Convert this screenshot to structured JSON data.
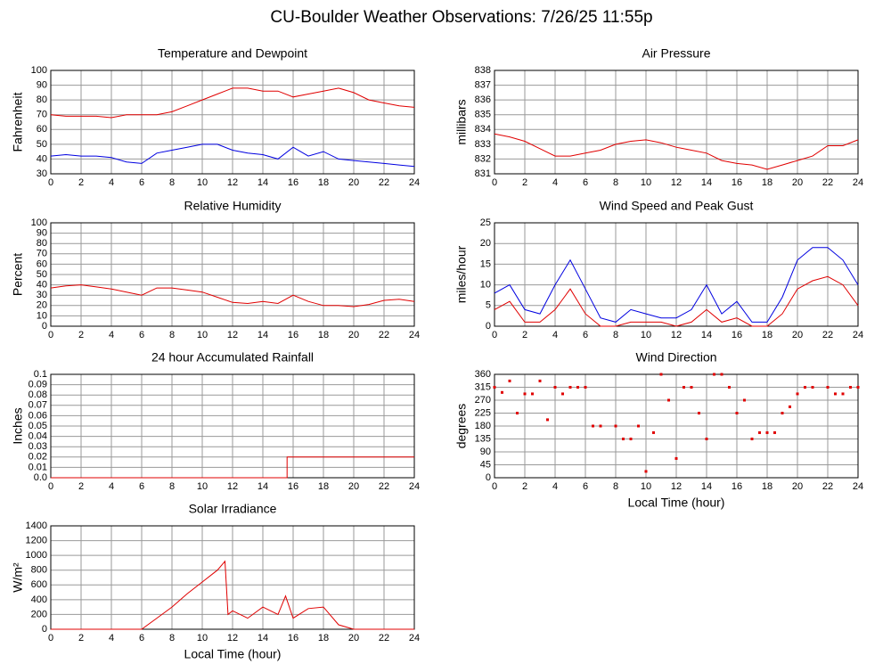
{
  "title": "CU-Boulder Weather Observations: 7/26/25 11:55p",
  "chart_data": [
    {
      "type": "line",
      "title": "Temperature and Dewpoint",
      "y_label": "Fahrenheit",
      "x": [
        0,
        1,
        2,
        3,
        4,
        5,
        6,
        7,
        8,
        9,
        10,
        11,
        12,
        13,
        14,
        15,
        16,
        17,
        18,
        19,
        20,
        21,
        22,
        23,
        24
      ],
      "series": [
        {
          "color": "#e00000",
          "values": [
            70,
            69,
            69,
            69,
            68,
            70,
            70,
            70,
            72,
            76,
            80,
            84,
            88,
            88,
            86,
            86,
            82,
            84,
            86,
            88,
            85,
            80,
            78,
            76,
            75
          ]
        },
        {
          "color": "#0000e0",
          "values": [
            42,
            43,
            42,
            42,
            41,
            38,
            37,
            44,
            46,
            48,
            50,
            50,
            46,
            44,
            43,
            40,
            48,
            42,
            45,
            40,
            39,
            38,
            37,
            36,
            35
          ]
        }
      ],
      "xlim": [
        0,
        24
      ],
      "xticks": [
        0,
        2,
        4,
        6,
        8,
        10,
        12,
        14,
        16,
        18,
        20,
        22,
        24
      ],
      "ylim": [
        30,
        100
      ],
      "yticks": [
        30,
        40,
        50,
        60,
        70,
        80,
        90,
        100
      ],
      "grid": true
    },
    {
      "type": "line",
      "title": "Air Pressure",
      "y_label": "millibars",
      "x": [
        0,
        1,
        2,
        3,
        4,
        5,
        6,
        7,
        8,
        9,
        10,
        11,
        12,
        13,
        14,
        15,
        16,
        17,
        18,
        19,
        20,
        21,
        22,
        23,
        24
      ],
      "series": [
        {
          "color": "#e00000",
          "values": [
            833.7,
            833.5,
            833.2,
            832.7,
            832.2,
            832.2,
            832.4,
            832.6,
            833.0,
            833.2,
            833.3,
            833.1,
            832.8,
            832.6,
            832.4,
            831.9,
            831.7,
            831.6,
            831.3,
            831.6,
            831.9,
            832.2,
            832.9,
            832.9,
            833.3
          ]
        }
      ],
      "xlim": [
        0,
        24
      ],
      "xticks": [
        0,
        2,
        4,
        6,
        8,
        10,
        12,
        14,
        16,
        18,
        20,
        22,
        24
      ],
      "ylim": [
        831,
        838
      ],
      "yticks": [
        831,
        832,
        833,
        834,
        835,
        836,
        837,
        838
      ],
      "grid": true
    },
    {
      "type": "line",
      "title": "Relative Humidity",
      "y_label": "Percent",
      "x": [
        0,
        1,
        2,
        3,
        4,
        5,
        6,
        7,
        8,
        9,
        10,
        11,
        12,
        13,
        14,
        15,
        16,
        17,
        18,
        19,
        20,
        21,
        22,
        23,
        24
      ],
      "series": [
        {
          "color": "#e00000",
          "values": [
            37,
            39,
            40,
            38,
            36,
            33,
            30,
            37,
            37,
            35,
            33,
            28,
            23,
            22,
            24,
            22,
            30,
            24,
            20,
            20,
            19,
            21,
            25,
            26,
            24
          ]
        }
      ],
      "xlim": [
        0,
        24
      ],
      "xticks": [
        0,
        2,
        4,
        6,
        8,
        10,
        12,
        14,
        16,
        18,
        20,
        22,
        24
      ],
      "ylim": [
        0,
        100
      ],
      "yticks": [
        0,
        10,
        20,
        30,
        40,
        50,
        60,
        70,
        80,
        90,
        100
      ],
      "grid": true
    },
    {
      "type": "line",
      "title": "Wind Speed and Peak Gust",
      "y_label": "miles/hour",
      "x": [
        0,
        1,
        2,
        3,
        4,
        5,
        6,
        7,
        8,
        9,
        10,
        11,
        12,
        13,
        14,
        15,
        16,
        17,
        18,
        19,
        20,
        21,
        22,
        23,
        24
      ],
      "series": [
        {
          "color": "#0000e0",
          "values": [
            8,
            10,
            4,
            3,
            10,
            16,
            9,
            2,
            1,
            4,
            3,
            2,
            2,
            4,
            10,
            3,
            6,
            1,
            1,
            7,
            16,
            19,
            19,
            16,
            10
          ]
        },
        {
          "color": "#e00000",
          "values": [
            4,
            6,
            1,
            1,
            4,
            9,
            3,
            0,
            0,
            1,
            1,
            1,
            0,
            1,
            4,
            1,
            2,
            0,
            0,
            3,
            9,
            11,
            12,
            10,
            5
          ]
        }
      ],
      "xlim": [
        0,
        24
      ],
      "xticks": [
        0,
        2,
        4,
        6,
        8,
        10,
        12,
        14,
        16,
        18,
        20,
        22,
        24
      ],
      "ylim": [
        0,
        25
      ],
      "yticks": [
        0,
        5,
        10,
        15,
        20,
        25
      ],
      "grid": true
    },
    {
      "type": "line",
      "title": "24 hour Accumulated Rainfall",
      "y_label": "Inches",
      "x": [
        0,
        15.6,
        15.6,
        24
      ],
      "series": [
        {
          "color": "#e00000",
          "values": [
            0,
            0,
            0.02,
            0.02
          ]
        }
      ],
      "xlim": [
        0,
        24
      ],
      "xticks": [
        0,
        2,
        4,
        6,
        8,
        10,
        12,
        14,
        16,
        18,
        20,
        22,
        24
      ],
      "ylim": [
        0,
        0.1
      ],
      "yticks": [
        {
          "value": 0,
          "label": "0.0"
        },
        0.01,
        0.02,
        0.03,
        0.04,
        0.05,
        0.06,
        0.07,
        0.08,
        0.09,
        0.1
      ],
      "grid": true
    },
    {
      "type": "scatter",
      "title": "Wind Direction",
      "y_label": "degrees",
      "x_label": "Local Time (hour)",
      "x": [
        0,
        0.5,
        1,
        1.5,
        2,
        2.5,
        3,
        3.5,
        4,
        4.5,
        5,
        5.5,
        6,
        6.5,
        7,
        8,
        8.5,
        9,
        9.5,
        10,
        10.5,
        11,
        11.5,
        12,
        12.5,
        13,
        13.5,
        14,
        14.5,
        15,
        15.5,
        16,
        16.5,
        17,
        17.5,
        18,
        18.5,
        19,
        19.5,
        20,
        20.5,
        21,
        22,
        22.5,
        23,
        23.5,
        24
      ],
      "series": [
        {
          "color": "#e00000",
          "values": [
            315,
            297,
            337,
            225,
            292,
            292,
            337,
            202,
            315,
            292,
            315,
            315,
            315,
            180,
            180,
            180,
            135,
            135,
            180,
            22,
            157,
            360,
            270,
            67,
            315,
            315,
            225,
            135,
            360,
            360,
            315,
            225,
            270,
            135,
            157,
            157,
            157,
            225,
            247,
            292,
            315,
            315,
            315,
            292,
            292,
            315,
            315
          ]
        }
      ],
      "xlim": [
        0,
        24
      ],
      "xticks": [
        0,
        2,
        4,
        6,
        8,
        10,
        12,
        14,
        16,
        18,
        20,
        22,
        24
      ],
      "ylim": [
        0,
        360
      ],
      "yticks": [
        0,
        45,
        90,
        135,
        180,
        225,
        270,
        315,
        360
      ],
      "grid": true
    },
    {
      "type": "line",
      "title": "Solar Irradiance",
      "y_label": "W/m²",
      "x_label": "Local Time (hour)",
      "x": [
        0,
        2,
        4,
        6,
        7,
        8,
        9,
        10,
        11,
        11.5,
        11.7,
        12,
        13,
        14,
        15,
        15.5,
        16,
        17,
        18,
        19,
        20,
        22,
        24
      ],
      "series": [
        {
          "color": "#e00000",
          "values": [
            0,
            0,
            0,
            0,
            150,
            300,
            480,
            640,
            800,
            920,
            200,
            250,
            150,
            300,
            200,
            450,
            150,
            280,
            300,
            60,
            0,
            0,
            0
          ]
        }
      ],
      "xlim": [
        0,
        24
      ],
      "xticks": [
        0,
        2,
        4,
        6,
        8,
        10,
        12,
        14,
        16,
        18,
        20,
        22,
        24
      ],
      "ylim": [
        0,
        1400
      ],
      "yticks": [
        0,
        200,
        400,
        600,
        800,
        1000,
        1200,
        1400
      ],
      "grid": true
    }
  ]
}
